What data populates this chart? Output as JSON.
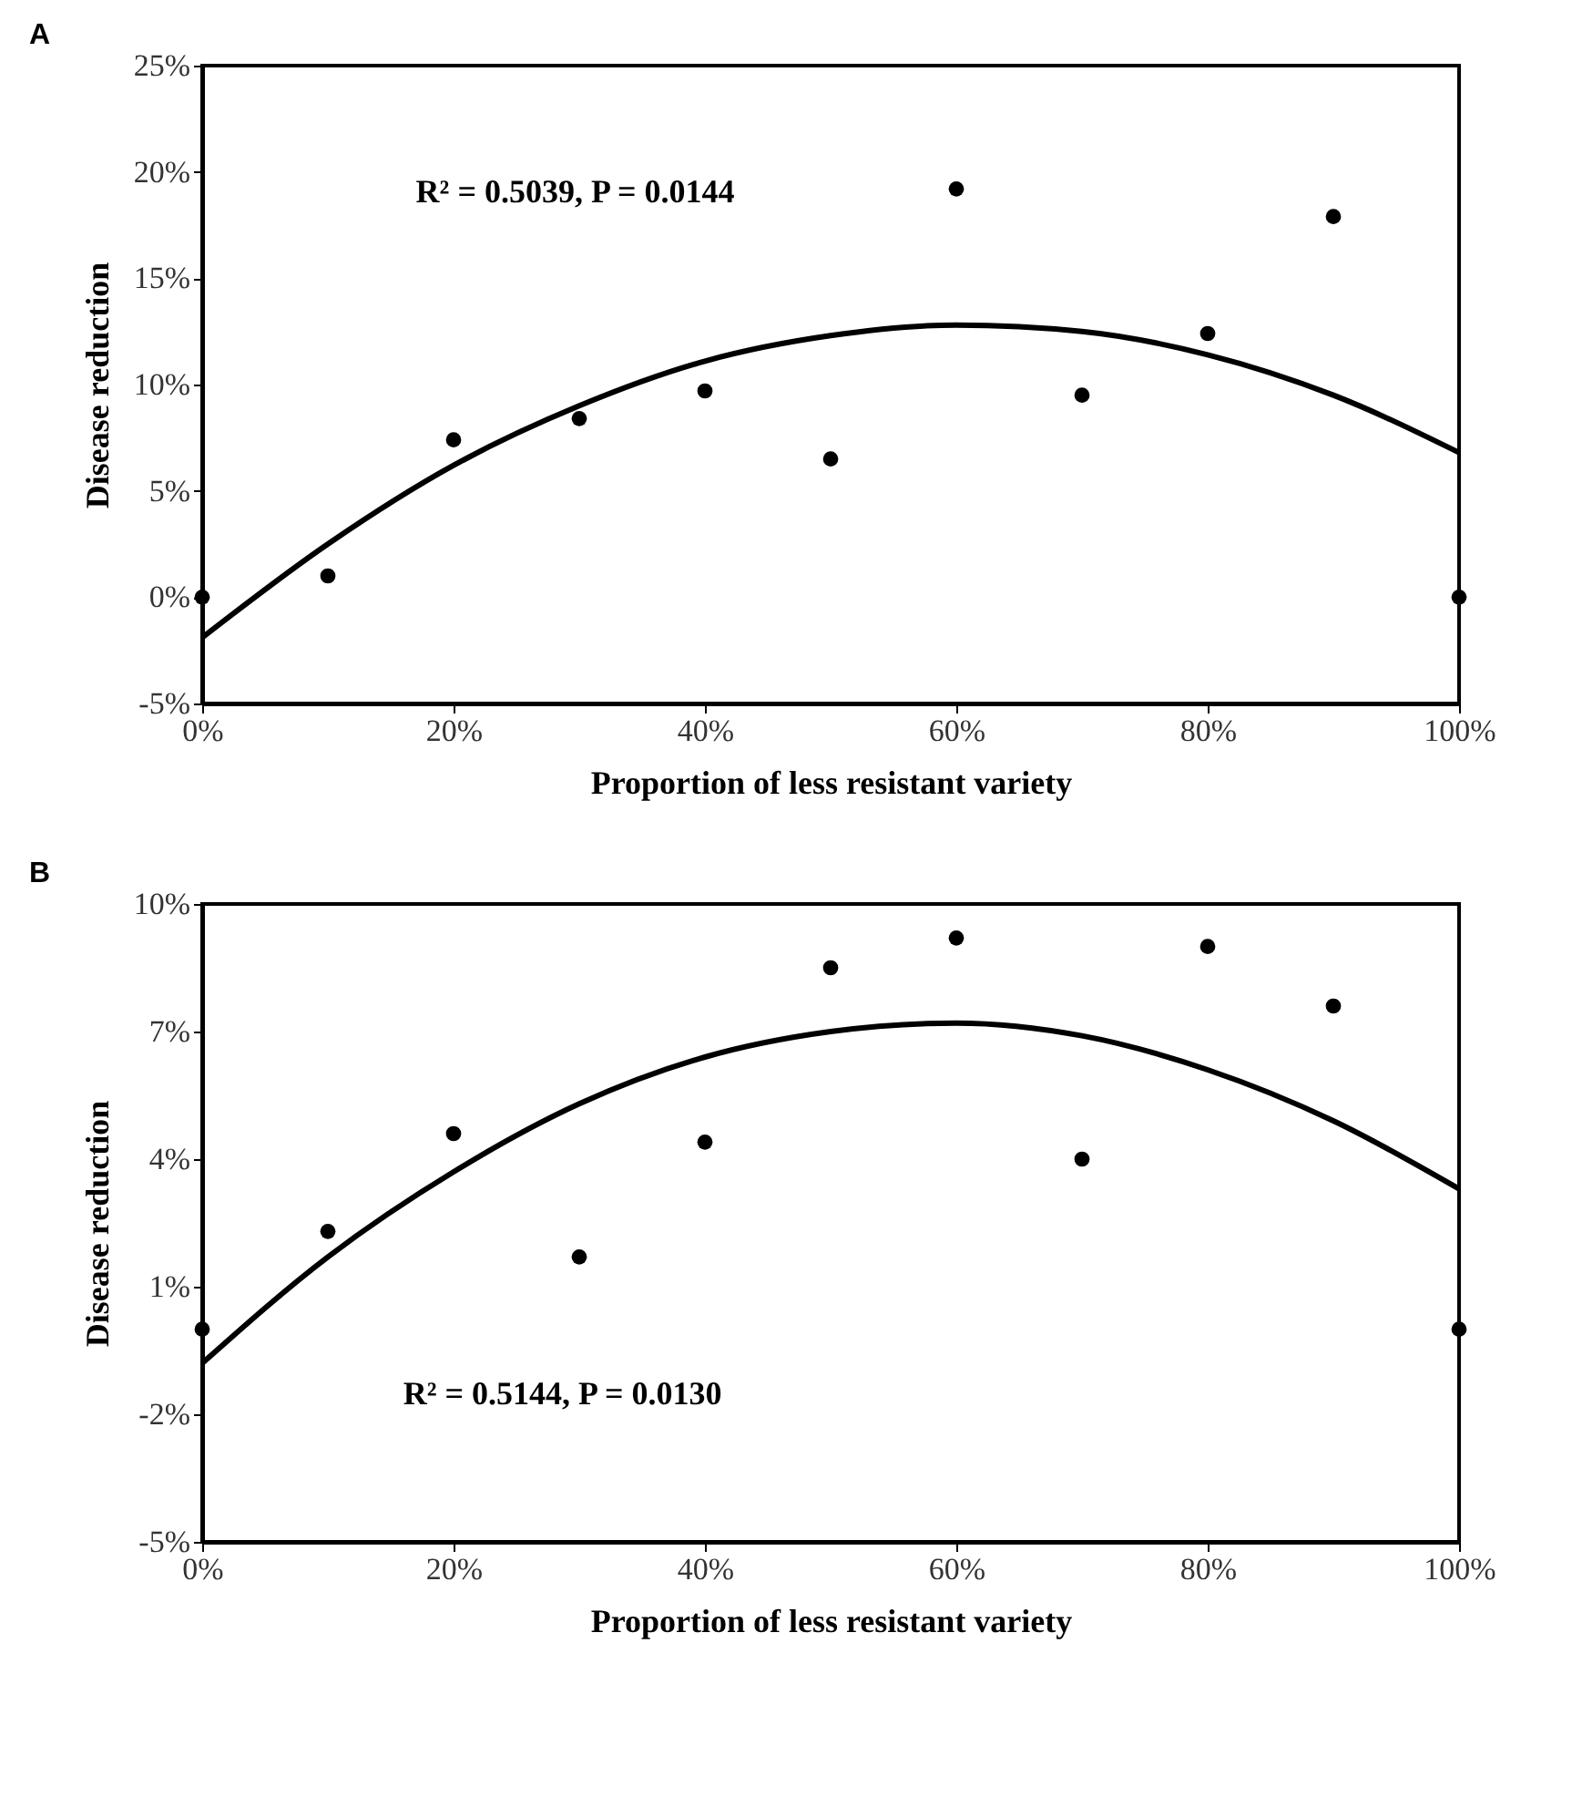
{
  "chart_data": [
    {
      "type": "scatter",
      "title": "A",
      "xlabel": "Proportion of less resistant variety",
      "ylabel": "Disease reduction",
      "annotations": [
        "R² = 0.5039, P = 0.0144"
      ],
      "grid": false,
      "x": [
        0,
        10,
        20,
        30,
        40,
        50,
        60,
        70,
        80,
        90,
        100
      ],
      "xlim": [
        0,
        100
      ],
      "xticks": [
        {
          "value": 0,
          "label": "0%"
        },
        {
          "value": 20,
          "label": "20%"
        },
        {
          "value": 40,
          "label": "40%"
        },
        {
          "value": 60,
          "label": "60%"
        },
        {
          "value": 80,
          "label": "80%"
        },
        {
          "value": 100,
          "label": "100%"
        }
      ],
      "ylim": [
        -5,
        25
      ],
      "yticks": [
        {
          "value": -5,
          "label": "-5%"
        },
        {
          "value": 0,
          "label": "0%"
        },
        {
          "value": 5,
          "label": "5%"
        },
        {
          "value": 10,
          "label": "10%"
        },
        {
          "value": 15,
          "label": "15%"
        },
        {
          "value": 20,
          "label": "20%"
        },
        {
          "value": 25,
          "label": "25%"
        }
      ],
      "series": [
        {
          "marker": "circle",
          "color": "#000000",
          "values": [
            0,
            1.0,
            7.4,
            8.4,
            9.7,
            6.5,
            19.2,
            9.5,
            12.4,
            17.9,
            0
          ]
        },
        {
          "type": "line",
          "color": "#000000",
          "x": [
            0,
            10,
            20,
            30,
            40,
            50,
            60,
            70,
            80,
            90,
            100
          ],
          "values": [
            -1.9,
            2.5,
            6.2,
            9.0,
            11.1,
            12.3,
            12.8,
            12.5,
            11.4,
            9.5,
            6.8
          ]
        }
      ]
    },
    {
      "type": "scatter",
      "title": "B",
      "xlabel": "Proportion of less resistant variety",
      "ylabel": "Disease reduction",
      "annotations": [
        "R² = 0.5144, P = 0.0130"
      ],
      "grid": false,
      "x": [
        0,
        10,
        20,
        30,
        40,
        50,
        60,
        70,
        80,
        90,
        100
      ],
      "xlim": [
        0,
        100
      ],
      "xticks": [
        {
          "value": 0,
          "label": "0%"
        },
        {
          "value": 20,
          "label": "20%"
        },
        {
          "value": 40,
          "label": "40%"
        },
        {
          "value": 60,
          "label": "60%"
        },
        {
          "value": 80,
          "label": "80%"
        },
        {
          "value": 100,
          "label": "100%"
        }
      ],
      "ylim": [
        -5,
        10
      ],
      "yticks": [
        {
          "value": -5,
          "label": "-5%"
        },
        {
          "value": -2,
          "label": "-2%"
        },
        {
          "value": 1,
          "label": "1%"
        },
        {
          "value": 4,
          "label": "4%"
        },
        {
          "value": 7,
          "label": "7%"
        },
        {
          "value": 10,
          "label": "10%"
        }
      ],
      "series": [
        {
          "marker": "circle",
          "color": "#000000",
          "values": [
            0,
            2.3,
            4.6,
            1.7,
            4.4,
            8.5,
            9.2,
            4.0,
            9.0,
            7.6,
            0
          ]
        },
        {
          "type": "line",
          "color": "#000000",
          "x": [
            0,
            10,
            20,
            30,
            40,
            50,
            60,
            70,
            80,
            90,
            100
          ],
          "values": [
            -0.8,
            1.7,
            3.7,
            5.3,
            6.4,
            7.0,
            7.2,
            6.9,
            6.1,
            4.9,
            3.3
          ]
        }
      ]
    }
  ]
}
